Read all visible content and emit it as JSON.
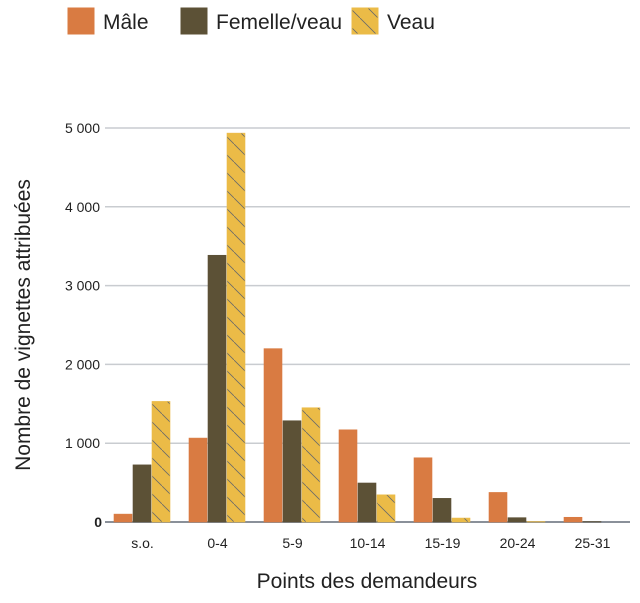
{
  "chart_data": {
    "type": "bar",
    "categories": [
      "s.o.",
      "0-4",
      "5-9",
      "10-14",
      "15-19",
      "20-24",
      "25-31"
    ],
    "series": [
      {
        "name": "Mâle",
        "color": "#D97B42",
        "pattern": "solid",
        "values": [
          100,
          1065,
          2200,
          1170,
          815,
          375,
          60
        ]
      },
      {
        "name": "Femelle/veau",
        "color": "#5C5136",
        "pattern": "solid",
        "values": [
          725,
          3385,
          1285,
          495,
          300,
          55,
          5
        ]
      },
      {
        "name": "Veau",
        "color": "#EBBB47",
        "pattern": "diagonal-hatch",
        "values": [
          1530,
          4935,
          1450,
          345,
          50,
          5,
          0
        ]
      }
    ],
    "xlabel": "Points des demandeurs",
    "ylabel": "Nombre de vignettes attribuées",
    "ylim": [
      0,
      5000
    ],
    "yticks": [
      0,
      1000,
      2000,
      3000,
      4000,
      5000
    ],
    "ytick_labels": [
      "0",
      "1 000",
      "2 000",
      "3 000",
      "4 000",
      "5 000"
    ],
    "grid": "horizontal",
    "legend": "top"
  }
}
